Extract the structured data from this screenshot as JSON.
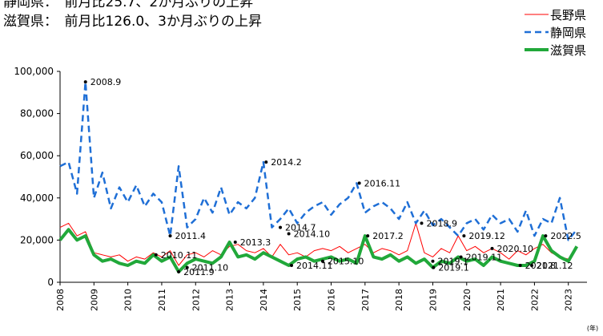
{
  "chart_data": {
    "type": "line",
    "header": [
      "静岡県：　前月比25.7、2か月ぶりの上昇",
      "滋賀県：　前月比126.0、3か月ぶりの上昇"
    ],
    "x_unit": "(年)",
    "x": [
      2008,
      2008.25,
      2008.5,
      2008.75,
      2009,
      2009.25,
      2009.5,
      2009.75,
      2010,
      2010.25,
      2010.5,
      2010.75,
      2011,
      2011.25,
      2011.5,
      2011.75,
      2012,
      2012.25,
      2012.5,
      2012.75,
      2013,
      2013.25,
      2013.5,
      2013.75,
      2014,
      2014.25,
      2014.5,
      2014.75,
      2015,
      2015.25,
      2015.5,
      2015.75,
      2016,
      2016.25,
      2016.5,
      2016.75,
      2017,
      2017.25,
      2017.5,
      2017.75,
      2018,
      2018.25,
      2018.5,
      2018.75,
      2019,
      2019.25,
      2019.5,
      2019.75,
      2020,
      2020.25,
      2020.5,
      2020.75,
      2021,
      2021.25,
      2021.5,
      2021.75,
      2022,
      2022.25,
      2022.5,
      2022.75,
      2023,
      2023.25
    ],
    "xlim": [
      2008,
      2023.55
    ],
    "xticks": [
      2008,
      2009,
      2010,
      2011,
      2012,
      2013,
      2014,
      2015,
      2016,
      2017,
      2018,
      2019,
      2020,
      2021,
      2022,
      2023
    ],
    "ylim": [
      0,
      100000
    ],
    "yticks": [
      0,
      {
        "value": 20000,
        "label": "20,000"
      },
      {
        "value": 40000,
        "label": "40,000"
      },
      {
        "value": 60000,
        "label": "60,000"
      },
      {
        "value": 80000,
        "label": "80,000"
      },
      {
        "value": 100000,
        "label": "100,000"
      }
    ],
    "series": [
      {
        "name": "長野県",
        "color": "#ff0000",
        "style": "solid",
        "width": 1,
        "values": [
          26000,
          28000,
          22000,
          24000,
          14000,
          13000,
          12000,
          13000,
          10000,
          12000,
          11000,
          14000,
          12000,
          15000,
          8000,
          13000,
          14000,
          12000,
          15000,
          13000,
          17000,
          18000,
          15000,
          14000,
          16000,
          12000,
          18000,
          13000,
          14000,
          12000,
          15000,
          16000,
          15000,
          17000,
          14000,
          16000,
          18000,
          14000,
          16000,
          15000,
          13000,
          15000,
          28000,
          14000,
          12000,
          16000,
          14000,
          22000,
          15000,
          17000,
          14000,
          16000,
          14000,
          11000,
          15000,
          13000,
          16000,
          18000,
          14000,
          12000,
          11000,
          16000
        ]
      },
      {
        "name": "静岡県",
        "color": "#1f6fd6",
        "style": "dashed",
        "width": 2.5,
        "values": [
          55000,
          57000,
          42000,
          95000,
          40000,
          52000,
          35000,
          45000,
          38000,
          46000,
          36000,
          42000,
          38000,
          22000,
          55000,
          26000,
          30000,
          40000,
          33000,
          45000,
          32000,
          38000,
          35000,
          40000,
          57000,
          26000,
          30000,
          35000,
          28000,
          33000,
          36000,
          38000,
          32000,
          37000,
          40000,
          47000,
          33000,
          36000,
          38000,
          35000,
          30000,
          38000,
          28000,
          34000,
          27000,
          30000,
          26000,
          22000,
          28000,
          30000,
          25000,
          32000,
          28000,
          30000,
          24000,
          34000,
          22000,
          30000,
          28000,
          40000,
          20000,
          25000
        ]
      },
      {
        "name": "滋賀県",
        "color": "#21a83a",
        "style": "solid",
        "width": 4,
        "values": [
          20000,
          25000,
          20000,
          22000,
          13000,
          10000,
          11000,
          9000,
          8000,
          10000,
          9000,
          13000,
          10000,
          12000,
          5000,
          9000,
          11000,
          10000,
          9000,
          12000,
          19000,
          12000,
          13000,
          11000,
          14000,
          12000,
          10000,
          8000,
          11000,
          12000,
          10000,
          11000,
          12000,
          10000,
          11000,
          9000,
          22000,
          12000,
          11000,
          13000,
          10000,
          12000,
          9000,
          11000,
          7000,
          10000,
          9000,
          12000,
          10000,
          11000,
          8000,
          12000,
          10000,
          9000,
          8000,
          8000,
          10000,
          22000,
          15000,
          12000,
          10000,
          17000
        ]
      }
    ],
    "annotations": [
      {
        "label": "2008.9",
        "x": 2008.75,
        "y": 95000
      },
      {
        "label": "2011.4",
        "x": 2011.25,
        "y": 22000
      },
      {
        "label": "2011.9",
        "x": 2011.5,
        "y": 5000
      },
      {
        "label": "2011.10",
        "x": 2011.75,
        "y": 7000
      },
      {
        "label": "2010.11",
        "x": 2010.83,
        "y": 13000
      },
      {
        "label": "2013.3",
        "x": 2013.17,
        "y": 19000
      },
      {
        "label": "2014.2",
        "x": 2014.08,
        "y": 57000
      },
      {
        "label": "2014.7",
        "x": 2014.5,
        "y": 26000
      },
      {
        "label": "2014.10",
        "x": 2014.75,
        "y": 23000
      },
      {
        "label": "2014.11",
        "x": 2014.83,
        "y": 8000
      },
      {
        "label": "2015.10",
        "x": 2015.75,
        "y": 10000
      },
      {
        "label": "2016.11",
        "x": 2016.83,
        "y": 47000
      },
      {
        "label": "2017.2",
        "x": 2017.08,
        "y": 22000
      },
      {
        "label": "2018.9",
        "x": 2018.67,
        "y": 28000
      },
      {
        "label": "2019.1",
        "x": 2019.0,
        "y": 10000
      },
      {
        "label": "2019.1",
        "x": 2019.02,
        "y": 7000
      },
      {
        "label": "2019.12",
        "x": 2019.92,
        "y": 22000
      },
      {
        "label": "2019.11",
        "x": 2019.83,
        "y": 12000
      },
      {
        "label": "2020.10",
        "x": 2020.75,
        "y": 16000
      },
      {
        "label": "2021.8",
        "x": 2021.58,
        "y": 8000
      },
      {
        "label": "2021.12",
        "x": 2021.92,
        "y": 8000
      },
      {
        "label": "2022.5",
        "x": 2022.33,
        "y": 22000
      }
    ]
  }
}
